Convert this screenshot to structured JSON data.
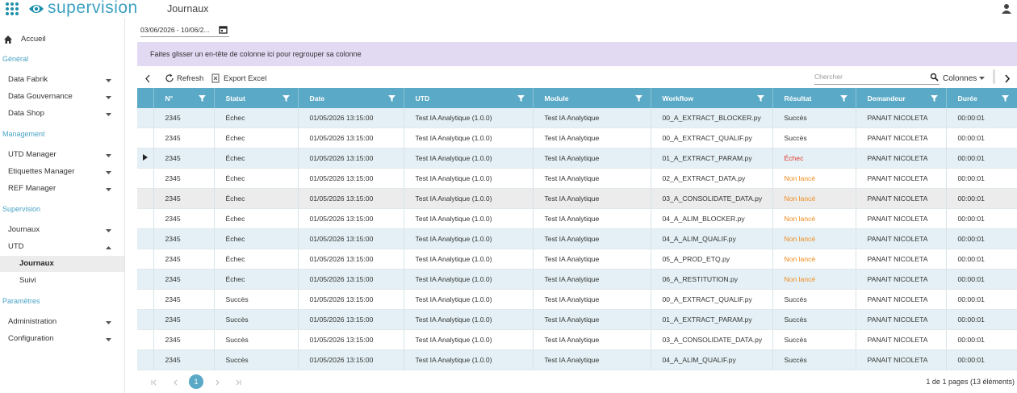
{
  "header": {
    "app_name": "supervision",
    "page_title": "Journaux"
  },
  "sidebar": {
    "home": "Accueil",
    "sections": [
      {
        "title": "Général",
        "items": [
          {
            "label": "Data Fabrik"
          },
          {
            "label": "Data Gouvernance"
          },
          {
            "label": "Data Shop"
          }
        ]
      },
      {
        "title": "Management",
        "items": [
          {
            "label": "UTD Manager"
          },
          {
            "label": "Etiquettes Manager"
          },
          {
            "label": "REF Manager"
          }
        ]
      },
      {
        "title": "Supervision",
        "items": [
          {
            "label": "Journaux"
          },
          {
            "label": "UTD",
            "children": [
              "Journaux",
              "Suivi"
            ]
          }
        ]
      },
      {
        "title": "Paramètres",
        "items": [
          {
            "label": "Administration"
          },
          {
            "label": "Configuration"
          }
        ]
      }
    ]
  },
  "toolbar": {
    "date_range": "03/06/2026 - 10/06/2...",
    "group_hint": "Faites glisser un en-tête de colonne ici pour regrouper sa colonne",
    "refresh": "Refresh",
    "export": "Export Excel",
    "search_placeholder": "Chercher",
    "columns_button": "Colonnes"
  },
  "table": {
    "columns": [
      "N°",
      "Statut",
      "Date",
      "UTD",
      "Module",
      "Workflow",
      "Résultat",
      "Demandeur",
      "Durée"
    ],
    "rows": [
      {
        "cells": [
          "2345",
          "Échec",
          "01/05/2026 13:15:00",
          "Test IA Analytique (1.0.0)",
          "Test IA Analytique",
          "00_A_EXTRACT_BLOCKER.py",
          "Succès",
          "PANAIT NICOLETA",
          "00:00:01"
        ],
        "result_color": "#333333"
      },
      {
        "cells": [
          "2345",
          "Échec",
          "01/05/2026 13:15:00",
          "Test IA Analytique (1.0.0)",
          "Test IA Analytique",
          "00_A_EXTRACT_QUALIF.py",
          "Succès",
          "PANAIT NICOLETA",
          "00:00:01"
        ],
        "result_color": "#333333"
      },
      {
        "cells": [
          "2345",
          "Échec",
          "01/05/2026 13:15:00",
          "Test IA Analytique (1.0.0)",
          "Test IA Analytique",
          "01_A_EXTRACT_PARAM.py",
          "Échec",
          "PANAIT NICOLETA",
          "00:00:01"
        ],
        "result_color": "#e53935"
      },
      {
        "cells": [
          "2345",
          "Échec",
          "01/05/2026 13:15:00",
          "Test IA Analytique (1.0.0)",
          "Test IA Analytique",
          "02_A_EXTRACT_DATA.py",
          "Non lancé",
          "PANAIT NICOLETA",
          "00:00:01"
        ],
        "result_color": "#f08c1e"
      },
      {
        "cells": [
          "2345",
          "Échec",
          "01/05/2026 13:15:00",
          "Test IA Analytique (1.0.0)",
          "Test IA Analytique",
          "03_A_CONSOLIDATE_DATA.py",
          "Non lancé",
          "PANAIT NICOLETA",
          "00:00:01"
        ],
        "result_color": "#f08c1e"
      },
      {
        "cells": [
          "2345",
          "Échec",
          "01/05/2026 13:15:00",
          "Test IA Analytique (1.0.0)",
          "Test IA Analytique",
          "04_A_ALIM_BLOCKER.py",
          "Non lancé",
          "PANAIT NICOLETA",
          "00:00:01"
        ],
        "result_color": "#f08c1e"
      },
      {
        "cells": [
          "2345",
          "Échec",
          "01/05/2026 13:15:00",
          "Test IA Analytique (1.0.0)",
          "Test IA Analytique",
          "04_A_ALIM_QUALIF.py",
          "Non lancé",
          "PANAIT NICOLETA",
          "00:00:01"
        ],
        "result_color": "#f08c1e"
      },
      {
        "cells": [
          "2345",
          "Échec",
          "01/05/2026 13:15:00",
          "Test IA Analytique (1.0.0)",
          "Test IA Analytique",
          "05_A_PROD_ETQ.py",
          "Non lancé",
          "PANAIT NICOLETA",
          "00:00:01"
        ],
        "result_color": "#f08c1e"
      },
      {
        "cells": [
          "2345",
          "Échec",
          "01/05/2026 13:15:00",
          "Test IA Analytique (1.0.0)",
          "Test IA Analytique",
          "06_A_RESTITUTION.py",
          "Non lancé",
          "PANAIT NICOLETA",
          "00:00:01"
        ],
        "result_color": "#f08c1e"
      },
      {
        "cells": [
          "2345",
          "Succès",
          "01/05/2026 13:15:00",
          "Test IA Analytique (1.0.0)",
          "Test IA Analytique",
          "00_A_EXTRACT_QUALIF.py",
          "Succès",
          "PANAIT NICOLETA",
          "00:00:01"
        ],
        "result_color": "#333333"
      },
      {
        "cells": [
          "2345",
          "Succès",
          "01/05/2026 13:15:00",
          "Test IA Analytique (1.0.0)",
          "Test IA Analytique",
          "01_A_EXTRACT_PARAM.py",
          "Succès",
          "PANAIT NICOLETA",
          "00:00:01"
        ],
        "result_color": "#333333"
      },
      {
        "cells": [
          "2345",
          "Succès",
          "01/05/2026 13:15:00",
          "Test IA Analytique (1.0.0)",
          "Test IA Analytique",
          "03_A_CONSOLIDATE_DATA.py",
          "Succès",
          "PANAIT NICOLETA",
          "00:00:01"
        ],
        "result_color": "#333333"
      },
      {
        "cells": [
          "2345",
          "Succès",
          "01/05/2026 13:15:00",
          "Test IA Analytique (1.0.0)",
          "Test IA Analytique",
          "04_A_ALIM_QUALIF.py",
          "Succès",
          "PANAIT NICOLETA",
          "00:00:01"
        ],
        "result_color": "#333333"
      }
    ]
  },
  "pager": {
    "current_page": 1,
    "summary": "1 de 1 pages (13 éléments)"
  }
}
